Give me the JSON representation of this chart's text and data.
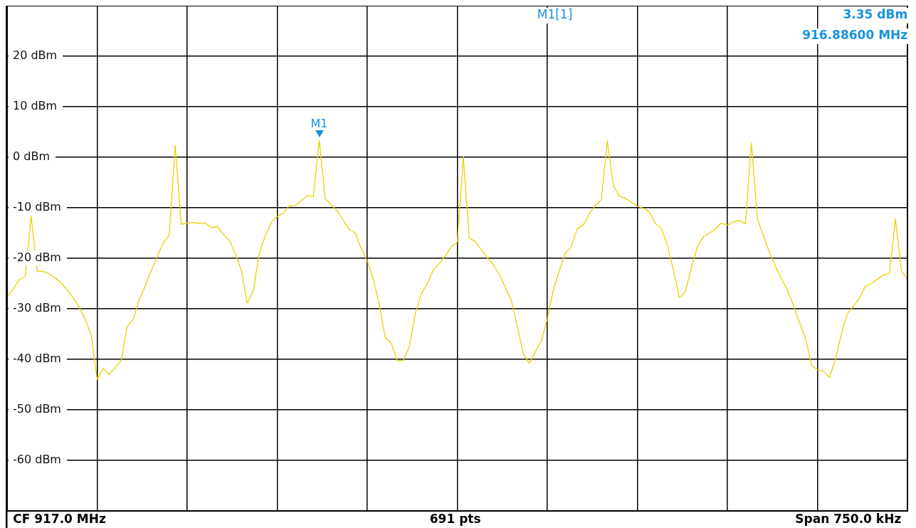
{
  "chart_data": {
    "type": "line",
    "categories": [
      null,
      null,
      null,
      null,
      null,
      null,
      null,
      null,
      null,
      null,
      null,
      null,
      null,
      null,
      null,
      null,
      null,
      null,
      null,
      null,
      null,
      null,
      null,
      null,
      null,
      null,
      null,
      null,
      null,
      null,
      null,
      null,
      null,
      null,
      null,
      null,
      null,
      null,
      null,
      null,
      null,
      null,
      null,
      null,
      null,
      null,
      null,
      null,
      null,
      null,
      null,
      null,
      null,
      null,
      null,
      null,
      null,
      null,
      null,
      null,
      null,
      null,
      null,
      null,
      null,
      null,
      null,
      null,
      null,
      null,
      null,
      null,
      null,
      null,
      null,
      null,
      null,
      null,
      null,
      null,
      null,
      null,
      null,
      null,
      null,
      null,
      null,
      null,
      null,
      null,
      null,
      null,
      null,
      null,
      null,
      null,
      null,
      null,
      null,
      null,
      null,
      null,
      null,
      null,
      null,
      null,
      null,
      null,
      null,
      null,
      null,
      null,
      null,
      null,
      null,
      null,
      null,
      null,
      null,
      null,
      null,
      null,
      null,
      null,
      null,
      null,
      null,
      null,
      null,
      null,
      null,
      null,
      null,
      null,
      null,
      null,
      null,
      null,
      null,
      null,
      null,
      null,
      null,
      null,
      null,
      null,
      null,
      null,
      null,
      null,
      null
    ],
    "series": [
      {
        "color": "#e6d200",
        "values": [
          -27.7,
          -26.1,
          -24.3,
          -23.6,
          -11.6,
          -22.5,
          -22.6,
          -23.1,
          -23.8,
          -24.9,
          -26.2,
          -27.8,
          -29.6,
          -32.0,
          -35.2,
          -44.0,
          -41.8,
          -43.0,
          -41.6,
          -40.3,
          -33.5,
          -32.1,
          -28.2,
          -25.5,
          -22.5,
          -19.7,
          -16.9,
          -15.5,
          2.4,
          -13.3,
          -13.0,
          -12.9,
          -13.1,
          -13.0,
          -13.9,
          -13.7,
          -15.2,
          -16.4,
          -19.0,
          -22.3,
          -28.9,
          -26.4,
          -19.0,
          -15.6,
          -12.9,
          -11.7,
          -11.1,
          -9.6,
          -9.6,
          -8.6,
          -7.6,
          -7.8,
          3.35,
          -8.2,
          -9.4,
          -10.6,
          -12.5,
          -14.3,
          -15.0,
          -18.1,
          -20.5,
          -24.1,
          -29.1,
          -35.7,
          -36.8,
          -40.3,
          -40.2,
          -37.5,
          -31.0,
          -27.1,
          -25.0,
          -22.3,
          -21.0,
          -19.5,
          -17.7,
          -16.8,
          0.1,
          -16.0,
          -16.7,
          -18.3,
          -19.9,
          -21.3,
          -23.2,
          -25.7,
          -28.4,
          -33.4,
          -38.9,
          -40.8,
          -38.5,
          -36.3,
          -32.0,
          -26.3,
          -22.4,
          -19.0,
          -17.7,
          -14.1,
          -13.4,
          -11.2,
          -9.5,
          -8.4,
          3.3,
          -5.6,
          -7.7,
          -8.1,
          -8.9,
          -9.7,
          -10.1,
          -10.8,
          -13.1,
          -14.1,
          -17.4,
          -22.3,
          -27.8,
          -26.6,
          -21.8,
          -17.8,
          -15.7,
          -15.0,
          -14.2,
          -13.0,
          -13.4,
          -12.8,
          -12.5,
          -13.2,
          2.8,
          -12.2,
          -15.5,
          -18.8,
          -21.6,
          -24.0,
          -26.3,
          -29.3,
          -32.7,
          -35.7,
          -41.1,
          -42.1,
          -42.3,
          -43.6,
          -40.0,
          -34.9,
          -30.9,
          -29.5,
          -27.9,
          -25.5,
          -25.0,
          -24.1,
          -23.3,
          -23.0,
          -12.2,
          -22.5,
          -24.2
        ]
      }
    ],
    "ylim": [
      -70,
      30
    ],
    "yticks": [
      {
        "value": 20,
        "label": "20 dBm"
      },
      {
        "value": 10,
        "label": "10 dBm"
      },
      {
        "value": 0,
        "label": "0 dBm"
      },
      {
        "value": -10,
        "label": "-10 dBm"
      },
      {
        "value": -20,
        "label": "-20 dBm"
      },
      {
        "value": -30,
        "label": "-30 dBm"
      },
      {
        "value": -40,
        "label": "-40 dBm"
      },
      {
        "value": -50,
        "label": "-50 dBm"
      },
      {
        "value": -60,
        "label": "-60 dBm"
      }
    ],
    "grid": true,
    "tick_labels": "y",
    "marker": "none",
    "line_style": "solid",
    "annotations": [
      "M1[1]",
      "3.35 dBm",
      "916.88600 MHz",
      "CF 917.0 MHz",
      "691 pts",
      "Span 750.0 kHz",
      {
        "text": "M1",
        "y": 3.35
      }
    ]
  }
}
